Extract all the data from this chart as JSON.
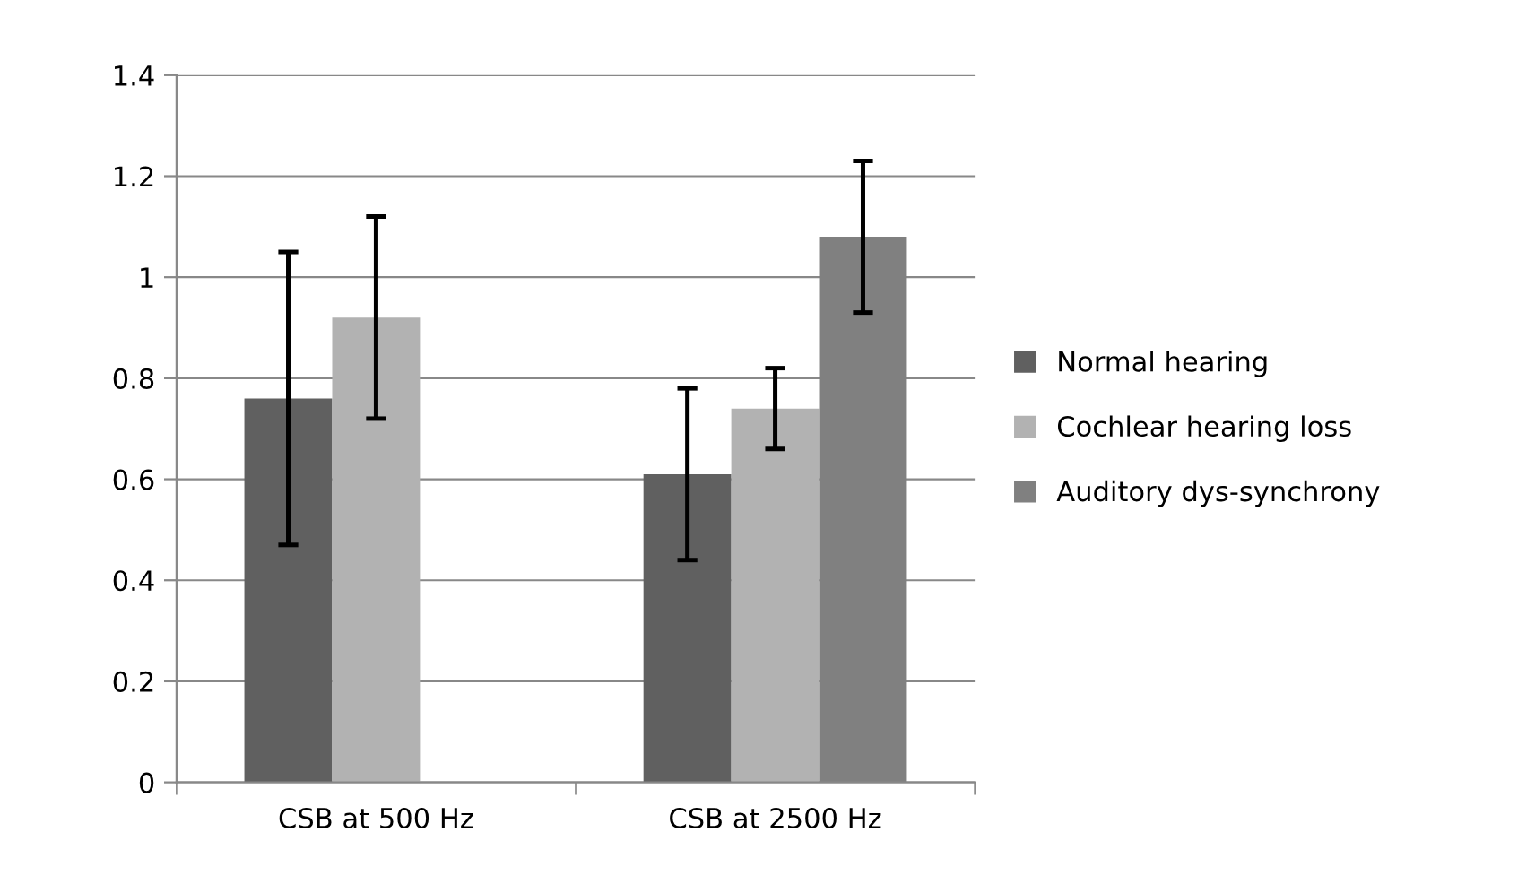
{
  "chart_data": {
    "type": "bar",
    "categories": [
      "CSB at 500 Hz",
      "CSB at 2500 Hz"
    ],
    "series": [
      {
        "name": "Normal hearing",
        "color": "#606060",
        "values": [
          0.76,
          0.61
        ],
        "errors": [
          0.29,
          0.17
        ]
      },
      {
        "name": "Cochlear hearing loss",
        "color": "#b2b2b2",
        "values": [
          0.92,
          0.74
        ],
        "errors": [
          0.2,
          0.08
        ]
      },
      {
        "name": "Auditory dys-synchrony",
        "color": "#808080",
        "values": [
          null,
          1.08
        ],
        "errors": [
          null,
          0.15
        ]
      }
    ],
    "ylim": [
      0,
      1.4
    ],
    "yticks": [
      0,
      0.2,
      0.4,
      0.6,
      0.8,
      1,
      1.2,
      1.4
    ],
    "grid": "y",
    "legend": "right"
  }
}
